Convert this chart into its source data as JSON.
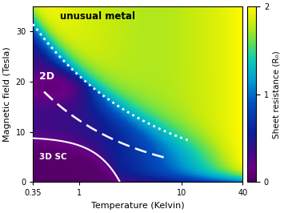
{
  "title": "unusual metal",
  "xlabel": "Temperature (Kelvin)",
  "ylabel": "Magnetic field (Tesla)",
  "colorbar_label": "Sheet resistance (R₀)",
  "colorbar_ticks": [
    0,
    1,
    2
  ],
  "T_min": 0.35,
  "T_max": 40,
  "B_min": 0,
  "B_max": 35,
  "label_2D": "2D",
  "label_3DSC": "3D SC",
  "Bc2_0": 9.0,
  "Tc": 2.5,
  "dotted_B0": 31.5,
  "dotted_alpha": 0.38,
  "dashed_B0": 18.0,
  "dashed_T0": 0.45,
  "dashed_alpha": 0.48
}
